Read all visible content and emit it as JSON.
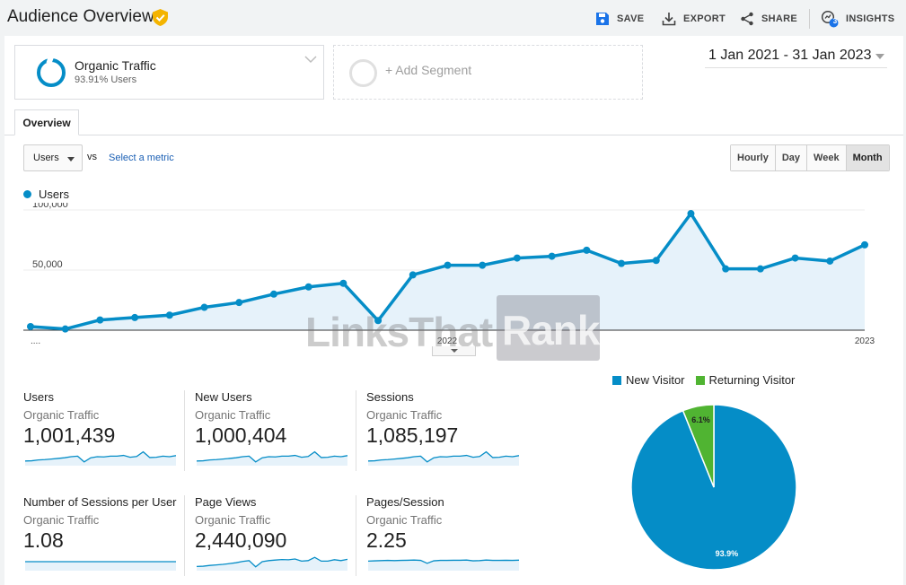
{
  "header": {
    "title": "Audience Overview",
    "save_label": "SAVE",
    "export_label": "EXPORT",
    "share_label": "SHARE",
    "insights_label": "INSIGHTS",
    "insights_badge": "3"
  },
  "segments": {
    "active": {
      "name": "Organic Traffic",
      "detail": "93.91% Users"
    },
    "add_label": "+ Add Segment"
  },
  "date_range": "1 Jan 2021 - 31 Jan 2023",
  "tabs": [
    {
      "label": "Overview"
    }
  ],
  "controls": {
    "metric_select": "Users",
    "vs_label": "vs",
    "select_metric_link": "Select a metric",
    "granularity": [
      "Hourly",
      "Day",
      "Week",
      "Month"
    ],
    "granularity_selected": "Month"
  },
  "watermark": {
    "left": "LinksThat",
    "right": "Rank"
  },
  "chart_data": [
    {
      "type": "area",
      "series": [
        {
          "name": "Users",
          "color": "#058dc7",
          "values": [
            3000,
            1000,
            8500,
            10500,
            12500,
            19000,
            23000,
            30000,
            36000,
            39000,
            8000,
            46000,
            54000,
            54000,
            60000,
            61500,
            66500,
            55500,
            58000,
            97000,
            51000,
            51000,
            60000,
            57500,
            71000
          ]
        }
      ],
      "x_tick_labels": [
        "....",
        "2022",
        "2023"
      ],
      "y_tick_labels": [
        "100,000",
        "50,000"
      ],
      "ylim": [
        0,
        100000
      ],
      "legend": "top-left"
    },
    {
      "type": "pie",
      "slices": [
        {
          "label": "New Visitor",
          "value": 93.9,
          "display": "93.9%",
          "color": "#058dc7"
        },
        {
          "label": "Returning Visitor",
          "value": 6.1,
          "display": "6.1%",
          "color": "#50b432"
        }
      ],
      "legend": "top"
    }
  ],
  "metrics": [
    {
      "name": "Users",
      "segment": "Organic Traffic",
      "value": "1,001,439"
    },
    {
      "name": "New Users",
      "segment": "Organic Traffic",
      "value": "1,000,404"
    },
    {
      "name": "Sessions",
      "segment": "Organic Traffic",
      "value": "1,085,197"
    },
    {
      "name": "Number of Sessions per User",
      "segment": "Organic Traffic",
      "value": "1.08"
    },
    {
      "name": "Page Views",
      "segment": "Organic Traffic",
      "value": "2,440,090"
    },
    {
      "name": "Pages/Session",
      "segment": "Organic Traffic",
      "value": "2.25"
    }
  ]
}
